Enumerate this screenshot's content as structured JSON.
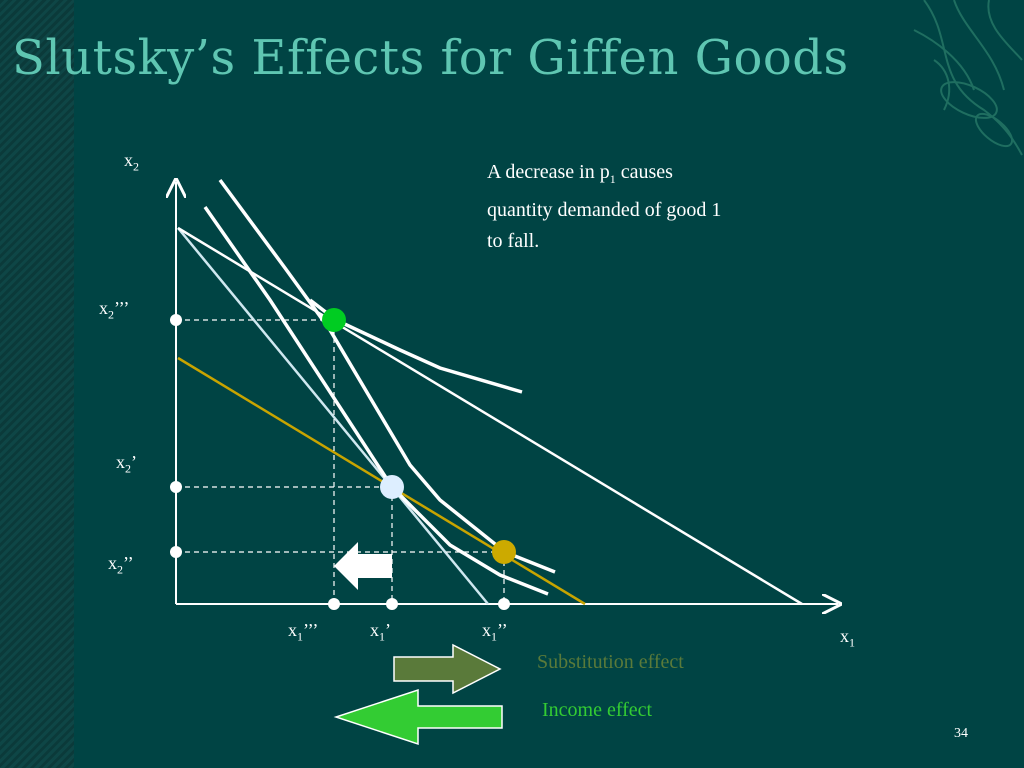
{
  "slide": {
    "title": "Slutsky’s Effects for Giffen Goods",
    "page_number": "34"
  },
  "axes": {
    "y": {
      "base": "x",
      "sub": "2"
    },
    "x": {
      "base": "x",
      "sub": "1"
    }
  },
  "y_labels": [
    {
      "base": "x",
      "sub": "2",
      "sup": "’’’"
    },
    {
      "base": "x",
      "sub": "2",
      "sup": "’"
    },
    {
      "base": "x",
      "sub": "2",
      "sup": "’’"
    }
  ],
  "x_labels": [
    {
      "base": "x",
      "sub": "1",
      "sup": "’’’"
    },
    {
      "base": "x",
      "sub": "1",
      "sup": "’"
    },
    {
      "base": "x",
      "sub": "1",
      "sup": "’’"
    }
  ],
  "note": {
    "pre": "A decrease in p",
    "sub": "1",
    "post": " causes quantity demanded of good 1 to fall."
  },
  "legend": {
    "substitution": {
      "label": "Substitution effect",
      "color": "#5a7a3a"
    },
    "income": {
      "label": "Income effect",
      "color": "#33cc33"
    }
  },
  "colors": {
    "background": "#004444",
    "title": "#5fc6b2",
    "green_point": "#00cc22",
    "light_blue_point": "#ddeeff",
    "gold_point": "#ccaa00",
    "gold_line": "#c8a400",
    "light_line": "#cfe8f0"
  },
  "icons": {
    "decor": "leaf-ornament-icon",
    "arrow_right": "right-arrow-icon",
    "arrow_left": "left-arrow-icon"
  }
}
